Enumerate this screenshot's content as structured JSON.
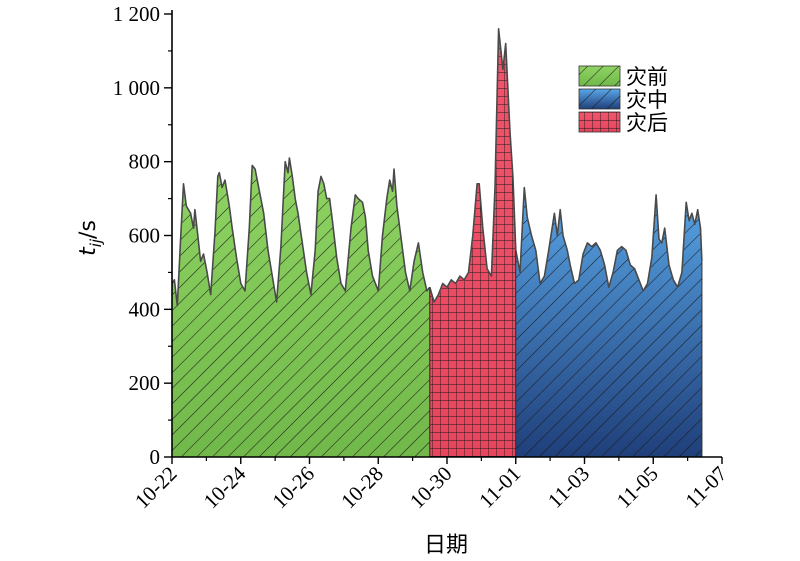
{
  "chart_data": {
    "type": "area",
    "xlabel": "日期",
    "ylabel_main": "t",
    "ylabel_sub": "ij",
    "ylabel_unit": "/s",
    "ylim": [
      0,
      1200
    ],
    "y_ticks": [
      0,
      200,
      400,
      600,
      800,
      1000,
      1200
    ],
    "y_tick_labels": [
      "0",
      "200",
      "400",
      "600",
      "800",
      "1 000",
      "1 200"
    ],
    "x_range_days": [
      "10-22",
      "11-07"
    ],
    "x_tick_labels": [
      "10-22",
      "10-24",
      "10-26",
      "10-28",
      "10-30",
      "11-01",
      "11-03",
      "11-05",
      "11-07"
    ],
    "grid": false,
    "legend_position": "top-right",
    "series": [
      {
        "name": "灾前",
        "color": "#8cd15d",
        "pattern": "diagonal-hatch",
        "points": [
          [
            "10-22 00:00",
            470
          ],
          [
            "10-22 01:40",
            480
          ],
          [
            "10-22 03:40",
            410
          ],
          [
            "10-22 06:00",
            590
          ],
          [
            "10-22 08:00",
            740
          ],
          [
            "10-22 10:00",
            680
          ],
          [
            "10-22 13:00",
            660
          ],
          [
            "10-22 15:00",
            620
          ],
          [
            "10-22 16:00",
            670
          ],
          [
            "10-22 18:00",
            600
          ],
          [
            "10-22 20:00",
            530
          ],
          [
            "10-22 22:00",
            550
          ],
          [
            "10-23 00:30",
            500
          ],
          [
            "10-23 03:00",
            440
          ],
          [
            "10-23 06:00",
            610
          ],
          [
            "10-23 08:00",
            760
          ],
          [
            "10-23 09:00",
            770
          ],
          [
            "10-23 11:00",
            730
          ],
          [
            "10-23 13:00",
            750
          ],
          [
            "10-23 16:00",
            680
          ],
          [
            "10-23 18:00",
            620
          ],
          [
            "10-23 21:00",
            540
          ],
          [
            "10-24 00:00",
            470
          ],
          [
            "10-24 03:00",
            450
          ],
          [
            "10-24 06:00",
            620
          ],
          [
            "10-24 08:00",
            790
          ],
          [
            "10-24 10:00",
            780
          ],
          [
            "10-24 13:00",
            720
          ],
          [
            "10-24 16:00",
            660
          ],
          [
            "10-24 19:00",
            560
          ],
          [
            "10-24 22:00",
            490
          ],
          [
            "10-25 01:00",
            420
          ],
          [
            "10-25 04:00",
            570
          ],
          [
            "10-25 07:00",
            800
          ],
          [
            "10-25 09:00",
            770
          ],
          [
            "10-25 10:00",
            810
          ],
          [
            "10-25 12:00",
            760
          ],
          [
            "10-25 14:00",
            700
          ],
          [
            "10-25 16:00",
            660
          ],
          [
            "10-25 19:00",
            580
          ],
          [
            "10-25 22:00",
            500
          ],
          [
            "10-26 01:00",
            440
          ],
          [
            "10-26 04:00",
            560
          ],
          [
            "10-26 06:00",
            720
          ],
          [
            "10-26 08:00",
            760
          ],
          [
            "10-26 10:00",
            740
          ],
          [
            "10-26 12:00",
            700
          ],
          [
            "10-26 14:00",
            700
          ],
          [
            "10-26 16:00",
            640
          ],
          [
            "10-26 19:00",
            540
          ],
          [
            "10-26 22:00",
            470
          ],
          [
            "10-27 01:00",
            450
          ],
          [
            "10-27 05:00",
            620
          ],
          [
            "10-27 08:00",
            710
          ],
          [
            "10-27 10:00",
            700
          ],
          [
            "10-27 13:00",
            690
          ],
          [
            "10-27 15:00",
            650
          ],
          [
            "10-27 17:00",
            560
          ],
          [
            "10-27 20:00",
            490
          ],
          [
            "10-28 00:00",
            450
          ],
          [
            "10-28 03:00",
            600
          ],
          [
            "10-28 06:00",
            700
          ],
          [
            "10-28 08:00",
            750
          ],
          [
            "10-28 10:00",
            720
          ],
          [
            "10-28 11:00",
            780
          ],
          [
            "10-28 13:00",
            680
          ],
          [
            "10-28 16:00",
            590
          ],
          [
            "10-28 19:00",
            500
          ],
          [
            "10-28 22:00",
            450
          ],
          [
            "10-29 01:00",
            530
          ],
          [
            "10-29 04:00",
            580
          ],
          [
            "10-29 07:00",
            500
          ],
          [
            "10-29 10:00",
            450
          ],
          [
            "10-29 12:00",
            460
          ]
        ]
      },
      {
        "name": "灾后",
        "color": "#ef4c64",
        "pattern": "grid",
        "points": [
          [
            "10-29 12:00",
            460
          ],
          [
            "10-29 15:00",
            420
          ],
          [
            "10-29 18:00",
            440
          ],
          [
            "10-29 21:00",
            470
          ],
          [
            "10-30 00:00",
            460
          ],
          [
            "10-30 03:00",
            480
          ],
          [
            "10-30 06:00",
            470
          ],
          [
            "10-30 09:00",
            490
          ],
          [
            "10-30 12:00",
            480
          ],
          [
            "10-30 15:00",
            500
          ],
          [
            "10-30 18:00",
            600
          ],
          [
            "10-30 21:00",
            740
          ],
          [
            "10-30 22:30",
            740
          ],
          [
            "10-31 01:00",
            620
          ],
          [
            "10-31 04:00",
            510
          ],
          [
            "10-31 07:00",
            490
          ],
          [
            "10-31 09:30",
            730
          ],
          [
            "10-31 12:00",
            1160
          ],
          [
            "10-31 15:00",
            1050
          ],
          [
            "10-31 17:00",
            1120
          ],
          [
            "10-31 20:00",
            880
          ],
          [
            "10-31 22:00",
            760
          ],
          [
            "11-01 00:00",
            560
          ]
        ]
      },
      {
        "name": "灾中",
        "color": "#4a7fc2",
        "pattern": "diagonal-hatch",
        "points": [
          [
            "11-01 00:00",
            560
          ],
          [
            "11-01 03:00",
            500
          ],
          [
            "11-01 06:00",
            730
          ],
          [
            "11-01 08:00",
            650
          ],
          [
            "11-01 11:00",
            600
          ],
          [
            "11-01 14:00",
            560
          ],
          [
            "11-01 17:00",
            470
          ],
          [
            "11-01 20:00",
            490
          ],
          [
            "11-01 23:00",
            560
          ],
          [
            "11-02 03:00",
            660
          ],
          [
            "11-02 05:00",
            600
          ],
          [
            "11-02 07:00",
            670
          ],
          [
            "11-02 09:00",
            600
          ],
          [
            "11-02 12:00",
            560
          ],
          [
            "11-02 14:00",
            520
          ],
          [
            "11-02 17:00",
            470
          ],
          [
            "11-02 20:00",
            480
          ],
          [
            "11-02 23:00",
            550
          ],
          [
            "11-03 02:00",
            580
          ],
          [
            "11-03 05:00",
            570
          ],
          [
            "11-03 08:00",
            580
          ],
          [
            "11-03 11:00",
            560
          ],
          [
            "11-03 14:00",
            520
          ],
          [
            "11-03 17:00",
            460
          ],
          [
            "11-03 20:00",
            500
          ],
          [
            "11-03 23:00",
            560
          ],
          [
            "11-04 02:00",
            570
          ],
          [
            "11-04 05:00",
            560
          ],
          [
            "11-04 08:00",
            520
          ],
          [
            "11-04 11:00",
            510
          ],
          [
            "11-04 14:00",
            480
          ],
          [
            "11-04 17:00",
            450
          ],
          [
            "11-04 20:00",
            470
          ],
          [
            "11-04 23:00",
            540
          ],
          [
            "11-05 02:00",
            710
          ],
          [
            "11-05 04:00",
            590
          ],
          [
            "11-05 06:00",
            580
          ],
          [
            "11-05 08:00",
            620
          ],
          [
            "11-05 11:00",
            520
          ],
          [
            "11-05 14:00",
            480
          ],
          [
            "11-05 17:00",
            460
          ],
          [
            "11-05 20:00",
            500
          ],
          [
            "11-05 23:00",
            690
          ],
          [
            "11-06 01:00",
            640
          ],
          [
            "11-06 03:00",
            660
          ],
          [
            "11-06 05:00",
            630
          ],
          [
            "11-06 07:00",
            670
          ],
          [
            "11-06 09:00",
            620
          ],
          [
            "11-06 10:00",
            530
          ]
        ]
      }
    ]
  },
  "legend": [
    {
      "label": "灾前",
      "color": "#8cd15d",
      "pattern": "diagonal-hatch"
    },
    {
      "label": "灾中",
      "color": "#4a7fc2",
      "pattern": "diagonal-hatch"
    },
    {
      "label": "灾后",
      "color": "#ef4c64",
      "pattern": "grid"
    }
  ]
}
